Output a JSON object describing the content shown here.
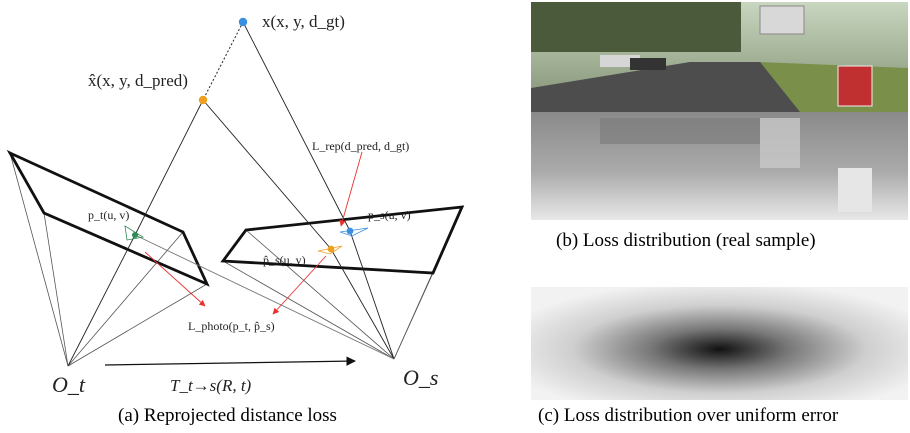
{
  "panel_a": {
    "caption": "(a) Reprojected distance loss",
    "point_gt": {
      "label": "x(x, y, d_gt)",
      "color": "#3b8fe0"
    },
    "point_pred": {
      "label": "x̂(x, y, d_pred)",
      "color": "#f0a020"
    },
    "target_pixel": {
      "label": "p_t(u, v)",
      "color": "#2e8b57"
    },
    "source_pixel": {
      "label": "p_s(u, v)",
      "color": "#3b8fe0"
    },
    "source_pixel_pred": {
      "label": "p̂_s(u, v)",
      "color": "#f0a020"
    },
    "loss_rep": {
      "label": "L_rep(d_pred, d_gt)",
      "color": "#e83030"
    },
    "loss_photo": {
      "label": "L_photo(p_t, p̂_s)",
      "color": "#e83030"
    },
    "camera_target": "O_t",
    "camera_source": "O_s",
    "transform": "T_t→s(R, t)"
  },
  "panel_b": {
    "caption": "(b) Loss distribution (real sample)"
  },
  "panel_c": {
    "caption": "(c) Loss distribution over uniform error"
  }
}
